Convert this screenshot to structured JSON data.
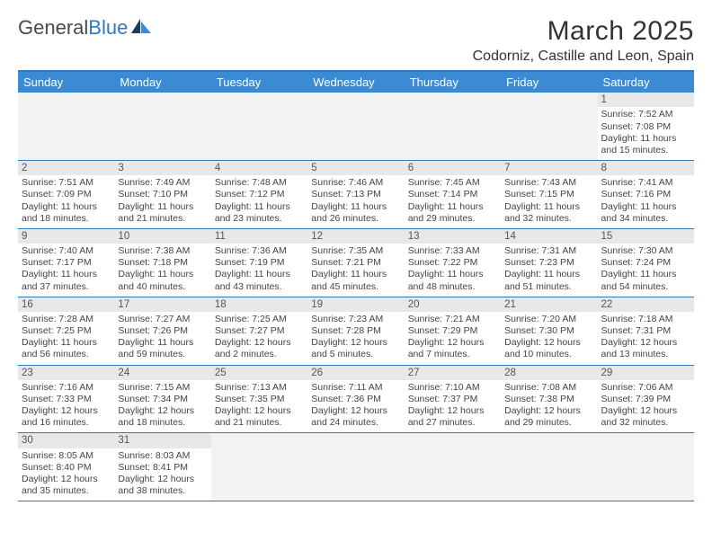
{
  "brand": {
    "word1": "General",
    "word2": "Blue"
  },
  "title": "March 2025",
  "location": "Codorniz, Castille and Leon, Spain",
  "colors": {
    "header_bg": "#3b8bd4",
    "border": "#2f7abf",
    "empty_bg": "#f2f2f2",
    "daynum_bg": "#e8e8e8",
    "text": "#333333"
  },
  "dayNames": [
    "Sunday",
    "Monday",
    "Tuesday",
    "Wednesday",
    "Thursday",
    "Friday",
    "Saturday"
  ],
  "leadingEmpty": 6,
  "trailingEmpty": 5,
  "days": [
    {
      "n": 1,
      "sr": "7:52 AM",
      "ss": "7:08 PM",
      "dh": 11,
      "dm": 15
    },
    {
      "n": 2,
      "sr": "7:51 AM",
      "ss": "7:09 PM",
      "dh": 11,
      "dm": 18
    },
    {
      "n": 3,
      "sr": "7:49 AM",
      "ss": "7:10 PM",
      "dh": 11,
      "dm": 21
    },
    {
      "n": 4,
      "sr": "7:48 AM",
      "ss": "7:12 PM",
      "dh": 11,
      "dm": 23
    },
    {
      "n": 5,
      "sr": "7:46 AM",
      "ss": "7:13 PM",
      "dh": 11,
      "dm": 26
    },
    {
      "n": 6,
      "sr": "7:45 AM",
      "ss": "7:14 PM",
      "dh": 11,
      "dm": 29
    },
    {
      "n": 7,
      "sr": "7:43 AM",
      "ss": "7:15 PM",
      "dh": 11,
      "dm": 32
    },
    {
      "n": 8,
      "sr": "7:41 AM",
      "ss": "7:16 PM",
      "dh": 11,
      "dm": 34
    },
    {
      "n": 9,
      "sr": "7:40 AM",
      "ss": "7:17 PM",
      "dh": 11,
      "dm": 37
    },
    {
      "n": 10,
      "sr": "7:38 AM",
      "ss": "7:18 PM",
      "dh": 11,
      "dm": 40
    },
    {
      "n": 11,
      "sr": "7:36 AM",
      "ss": "7:19 PM",
      "dh": 11,
      "dm": 43
    },
    {
      "n": 12,
      "sr": "7:35 AM",
      "ss": "7:21 PM",
      "dh": 11,
      "dm": 45
    },
    {
      "n": 13,
      "sr": "7:33 AM",
      "ss": "7:22 PM",
      "dh": 11,
      "dm": 48
    },
    {
      "n": 14,
      "sr": "7:31 AM",
      "ss": "7:23 PM",
      "dh": 11,
      "dm": 51
    },
    {
      "n": 15,
      "sr": "7:30 AM",
      "ss": "7:24 PM",
      "dh": 11,
      "dm": 54
    },
    {
      "n": 16,
      "sr": "7:28 AM",
      "ss": "7:25 PM",
      "dh": 11,
      "dm": 56
    },
    {
      "n": 17,
      "sr": "7:27 AM",
      "ss": "7:26 PM",
      "dh": 11,
      "dm": 59
    },
    {
      "n": 18,
      "sr": "7:25 AM",
      "ss": "7:27 PM",
      "dh": 12,
      "dm": 2
    },
    {
      "n": 19,
      "sr": "7:23 AM",
      "ss": "7:28 PM",
      "dh": 12,
      "dm": 5
    },
    {
      "n": 20,
      "sr": "7:21 AM",
      "ss": "7:29 PM",
      "dh": 12,
      "dm": 7
    },
    {
      "n": 21,
      "sr": "7:20 AM",
      "ss": "7:30 PM",
      "dh": 12,
      "dm": 10
    },
    {
      "n": 22,
      "sr": "7:18 AM",
      "ss": "7:31 PM",
      "dh": 12,
      "dm": 13
    },
    {
      "n": 23,
      "sr": "7:16 AM",
      "ss": "7:33 PM",
      "dh": 12,
      "dm": 16
    },
    {
      "n": 24,
      "sr": "7:15 AM",
      "ss": "7:34 PM",
      "dh": 12,
      "dm": 18
    },
    {
      "n": 25,
      "sr": "7:13 AM",
      "ss": "7:35 PM",
      "dh": 12,
      "dm": 21
    },
    {
      "n": 26,
      "sr": "7:11 AM",
      "ss": "7:36 PM",
      "dh": 12,
      "dm": 24
    },
    {
      "n": 27,
      "sr": "7:10 AM",
      "ss": "7:37 PM",
      "dh": 12,
      "dm": 27
    },
    {
      "n": 28,
      "sr": "7:08 AM",
      "ss": "7:38 PM",
      "dh": 12,
      "dm": 29
    },
    {
      "n": 29,
      "sr": "7:06 AM",
      "ss": "7:39 PM",
      "dh": 12,
      "dm": 32
    },
    {
      "n": 30,
      "sr": "8:05 AM",
      "ss": "8:40 PM",
      "dh": 12,
      "dm": 35
    },
    {
      "n": 31,
      "sr": "8:03 AM",
      "ss": "8:41 PM",
      "dh": 12,
      "dm": 38
    }
  ],
  "labels": {
    "sunrise": "Sunrise:",
    "sunset": "Sunset:",
    "daylight": "Daylight:",
    "hours": "hours",
    "and": "and",
    "minutes": "minutes."
  }
}
